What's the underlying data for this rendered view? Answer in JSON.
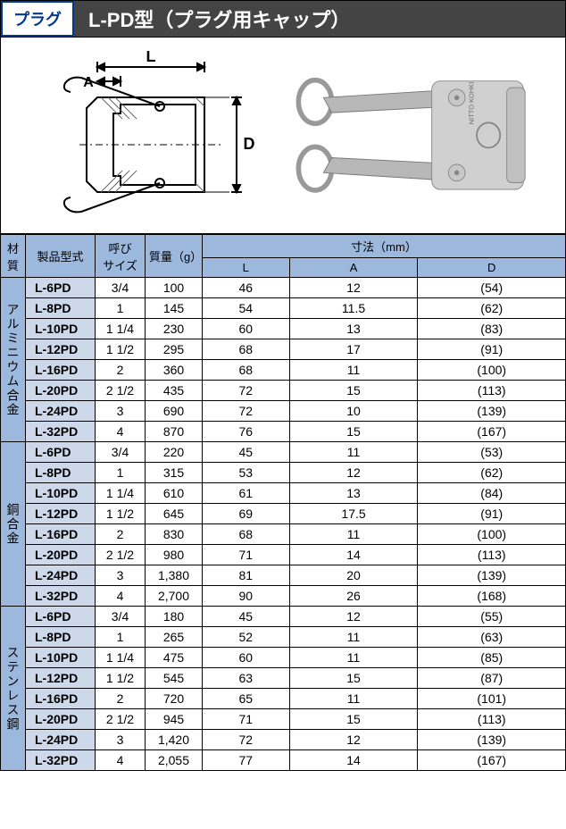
{
  "header": {
    "tag": "プラグ",
    "title": "L-PD型（プラグ用キャップ）"
  },
  "diagram": {
    "labels": {
      "L": "L",
      "A": "A",
      "D": "D"
    },
    "drawing_stroke": "#000000",
    "drawing_hatch": "#666666",
    "photo_body_fill": "#d0d0d0",
    "photo_lever_fill": "#b8b8b8",
    "photo_ring_fill": "#e0e0e0",
    "brand_text": "NITTO KOHKI"
  },
  "table": {
    "headers": {
      "material": "材質",
      "model": "製品型式",
      "size": "呼び\nサイズ",
      "mass": "質量（g）",
      "dims": "寸法（mm）",
      "L": "L",
      "A": "A",
      "D": "D"
    },
    "header_bg": "#9cb8dd",
    "model_bg": "#cdd9eb",
    "border_color": "#000000",
    "groups": [
      {
        "material": "アルミニウム合金",
        "rows": [
          {
            "model": "L-6PD",
            "size": "3/4",
            "mass": "100",
            "L": "46",
            "A": "12",
            "D": "(54)"
          },
          {
            "model": "L-8PD",
            "size": "1",
            "mass": "145",
            "L": "54",
            "A": "11.5",
            "D": "(62)"
          },
          {
            "model": "L-10PD",
            "size": "1 1/4",
            "mass": "230",
            "L": "60",
            "A": "13",
            "D": "(83)"
          },
          {
            "model": "L-12PD",
            "size": "1 1/2",
            "mass": "295",
            "L": "68",
            "A": "17",
            "D": "(91)"
          },
          {
            "model": "L-16PD",
            "size": "2",
            "mass": "360",
            "L": "68",
            "A": "11",
            "D": "(100)"
          },
          {
            "model": "L-20PD",
            "size": "2 1/2",
            "mass": "435",
            "L": "72",
            "A": "15",
            "D": "(113)"
          },
          {
            "model": "L-24PD",
            "size": "3",
            "mass": "690",
            "L": "72",
            "A": "10",
            "D": "(139)"
          },
          {
            "model": "L-32PD",
            "size": "4",
            "mass": "870",
            "L": "76",
            "A": "15",
            "D": "(167)"
          }
        ]
      },
      {
        "material": "銅合金",
        "rows": [
          {
            "model": "L-6PD",
            "size": "3/4",
            "mass": "220",
            "L": "45",
            "A": "11",
            "D": "(53)"
          },
          {
            "model": "L-8PD",
            "size": "1",
            "mass": "315",
            "L": "53",
            "A": "12",
            "D": "(62)"
          },
          {
            "model": "L-10PD",
            "size": "1 1/4",
            "mass": "610",
            "L": "61",
            "A": "13",
            "D": "(84)"
          },
          {
            "model": "L-12PD",
            "size": "1 1/2",
            "mass": "645",
            "L": "69",
            "A": "17.5",
            "D": "(91)"
          },
          {
            "model": "L-16PD",
            "size": "2",
            "mass": "830",
            "L": "68",
            "A": "11",
            "D": "(100)"
          },
          {
            "model": "L-20PD",
            "size": "2 1/2",
            "mass": "980",
            "L": "71",
            "A": "14",
            "D": "(113)"
          },
          {
            "model": "L-24PD",
            "size": "3",
            "mass": "1,380",
            "L": "81",
            "A": "20",
            "D": "(139)"
          },
          {
            "model": "L-32PD",
            "size": "4",
            "mass": "2,700",
            "L": "90",
            "A": "26",
            "D": "(168)"
          }
        ]
      },
      {
        "material": "ステンレス鋼",
        "rows": [
          {
            "model": "L-6PD",
            "size": "3/4",
            "mass": "180",
            "L": "45",
            "A": "12",
            "D": "(55)"
          },
          {
            "model": "L-8PD",
            "size": "1",
            "mass": "265",
            "L": "52",
            "A": "11",
            "D": "(63)"
          },
          {
            "model": "L-10PD",
            "size": "1 1/4",
            "mass": "475",
            "L": "60",
            "A": "11",
            "D": "(85)"
          },
          {
            "model": "L-12PD",
            "size": "1 1/2",
            "mass": "545",
            "L": "63",
            "A": "15",
            "D": "(87)"
          },
          {
            "model": "L-16PD",
            "size": "2",
            "mass": "720",
            "L": "65",
            "A": "11",
            "D": "(101)"
          },
          {
            "model": "L-20PD",
            "size": "2 1/2",
            "mass": "945",
            "L": "71",
            "A": "15",
            "D": "(113)"
          },
          {
            "model": "L-24PD",
            "size": "3",
            "mass": "1,420",
            "L": "72",
            "A": "12",
            "D": "(139)"
          },
          {
            "model": "L-32PD",
            "size": "4",
            "mass": "2,055",
            "L": "77",
            "A": "14",
            "D": "(167)"
          }
        ]
      }
    ]
  }
}
